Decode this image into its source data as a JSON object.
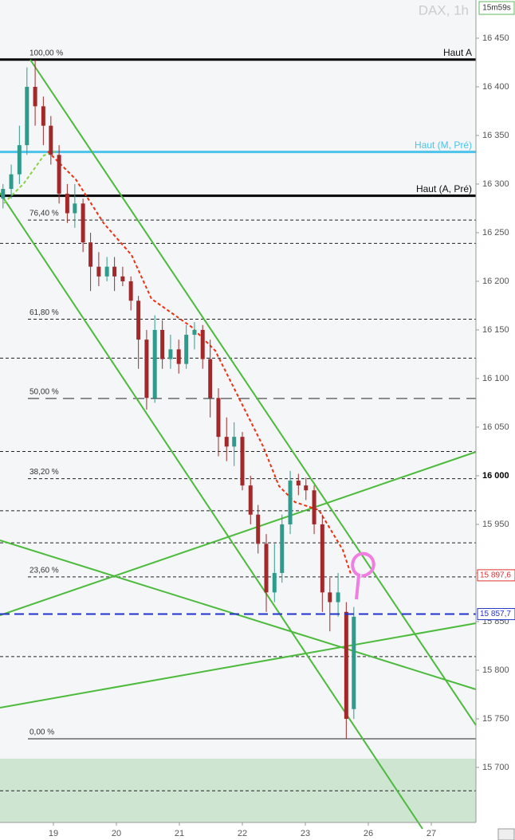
{
  "chart_data": {
    "type": "candlestick",
    "title": "DAX, 1h",
    "timer": "15m59s",
    "xlim": [
      -0.848,
      6.709
    ],
    "ylim": [
      15643.4,
      16489.3
    ],
    "xticks": [
      {
        "value": 0,
        "label": "19"
      },
      {
        "value": 1,
        "label": "20"
      },
      {
        "value": 2,
        "label": "21"
      },
      {
        "value": 3,
        "label": "22"
      },
      {
        "value": 4,
        "label": "23"
      },
      {
        "value": 5,
        "label": "26"
      },
      {
        "value": 6,
        "label": "27"
      }
    ],
    "yticks": [
      {
        "value": 16450,
        "label": "16 450"
      },
      {
        "value": 16400,
        "label": "16 400"
      },
      {
        "value": 16350,
        "label": "16 350"
      },
      {
        "value": 16300,
        "label": "16 300"
      },
      {
        "value": 16250,
        "label": "16 250"
      },
      {
        "value": 16200,
        "label": "16 200"
      },
      {
        "value": 16150,
        "label": "16 150"
      },
      {
        "value": 16100,
        "label": "16 100"
      },
      {
        "value": 16050,
        "label": "16 050"
      },
      {
        "value": 16000,
        "label": "16 000"
      },
      {
        "value": 15950,
        "label": "15 950"
      },
      {
        "value": 15900,
        "label": "15 900"
      },
      {
        "value": 15850,
        "label": "15 850"
      },
      {
        "value": 15800,
        "label": "15 800"
      },
      {
        "value": 15750,
        "label": "15 750"
      },
      {
        "value": 15700,
        "label": "15 700"
      }
    ],
    "up_color": "#2e9c8c",
    "down_color": "#a3282a",
    "candles": {
      "x": [
        -0.8,
        -0.67,
        -0.54,
        -0.42,
        -0.29,
        -0.16,
        -0.04,
        0.09,
        0.22,
        0.34,
        0.47,
        0.59,
        0.72,
        0.85,
        0.97,
        1.1,
        1.23,
        1.35,
        1.48,
        1.61,
        1.73,
        1.86,
        1.99,
        2.11,
        2.24,
        2.37,
        2.49,
        2.62,
        2.75,
        2.87,
        3.0,
        3.13,
        3.25,
        3.38,
        3.51,
        3.63,
        3.76,
        3.89,
        4.01,
        4.14,
        4.27,
        4.39,
        4.52,
        4.65,
        4.77
      ],
      "open": [
        16285,
        16295,
        16310,
        16340,
        16400,
        16380,
        16360,
        16330,
        16290,
        16270,
        16280,
        16240,
        16215,
        16205,
        16215,
        16205,
        16200,
        16180,
        16140,
        16080,
        16150,
        16120,
        16130,
        16115,
        16145,
        16150,
        16120,
        16080,
        16040,
        16030,
        16040,
        15990,
        15960,
        15930,
        15880,
        15900,
        15950,
        15995,
        15990,
        15985,
        15950,
        15880,
        15870,
        15860,
        15760
      ],
      "high": [
        16300,
        16320,
        16360,
        16420,
        16428,
        16390,
        16370,
        16340,
        16300,
        16300,
        16285,
        16250,
        16230,
        16225,
        16225,
        16215,
        16205,
        16185,
        16150,
        16165,
        16160,
        16145,
        16140,
        16155,
        16158,
        16155,
        16140,
        16090,
        16060,
        16055,
        16045,
        16000,
        15970,
        15940,
        15930,
        15960,
        16005,
        16002,
        15998,
        15990,
        15960,
        15895,
        15900,
        15870,
        15865
      ],
      "low": [
        16275,
        16285,
        16300,
        16330,
        16360,
        16340,
        16320,
        16280,
        16260,
        16255,
        16230,
        16190,
        16195,
        16200,
        16190,
        16195,
        16170,
        16110,
        16068,
        16075,
        16110,
        16110,
        16105,
        16110,
        16130,
        16110,
        16060,
        16020,
        16015,
        16010,
        15985,
        15950,
        15920,
        15860,
        15870,
        15890,
        15940,
        15980,
        15975,
        15940,
        15860,
        15840,
        15855,
        15730,
        15750
      ],
      "close": [
        16295,
        16310,
        16340,
        16400,
        16380,
        16360,
        16330,
        16290,
        16270,
        16280,
        16240,
        16215,
        16205,
        16215,
        16205,
        16200,
        16180,
        16140,
        16080,
        16150,
        16120,
        16130,
        16115,
        16145,
        16150,
        16120,
        16080,
        16040,
        16030,
        16040,
        15990,
        15960,
        15930,
        15880,
        15900,
        15950,
        15995,
        15990,
        15985,
        15950,
        15880,
        15870,
        15880,
        15750,
        15855
      ]
    },
    "lines": [
      {
        "label": "Haut A",
        "value": 16428,
        "color": "#000000"
      },
      {
        "label": "Haut (M, Pré)",
        "value": 16333,
        "color": "#4cc3ea"
      },
      {
        "label": "Haut (A, Pré)",
        "value": 16288,
        "color": "#000000"
      }
    ],
    "fib": [
      {
        "label": "100,00 %",
        "value": 16428
      },
      {
        "label": "76,40 %",
        "value": 16263
      },
      {
        "label": "61,80 %",
        "value": 16161
      },
      {
        "label": "50,00 %",
        "value": 16079.5
      },
      {
        "label": "38,20 %",
        "value": 15997
      },
      {
        "label": "23,60 %",
        "value": 15896
      },
      {
        "label": "0,00 %",
        "value": 15729.5
      }
    ],
    "levels": [
      16239,
      16121,
      16025,
      15964,
      15931,
      15814,
      15676
    ],
    "price_labels": [
      {
        "label": "15 897,6",
        "value": 15897.6,
        "color": "#e03030"
      },
      {
        "label": "15 857,7",
        "value": 15857.7,
        "color": "#2233cc"
      }
    ],
    "zone": [
      15643.4,
      15709
    ]
  }
}
